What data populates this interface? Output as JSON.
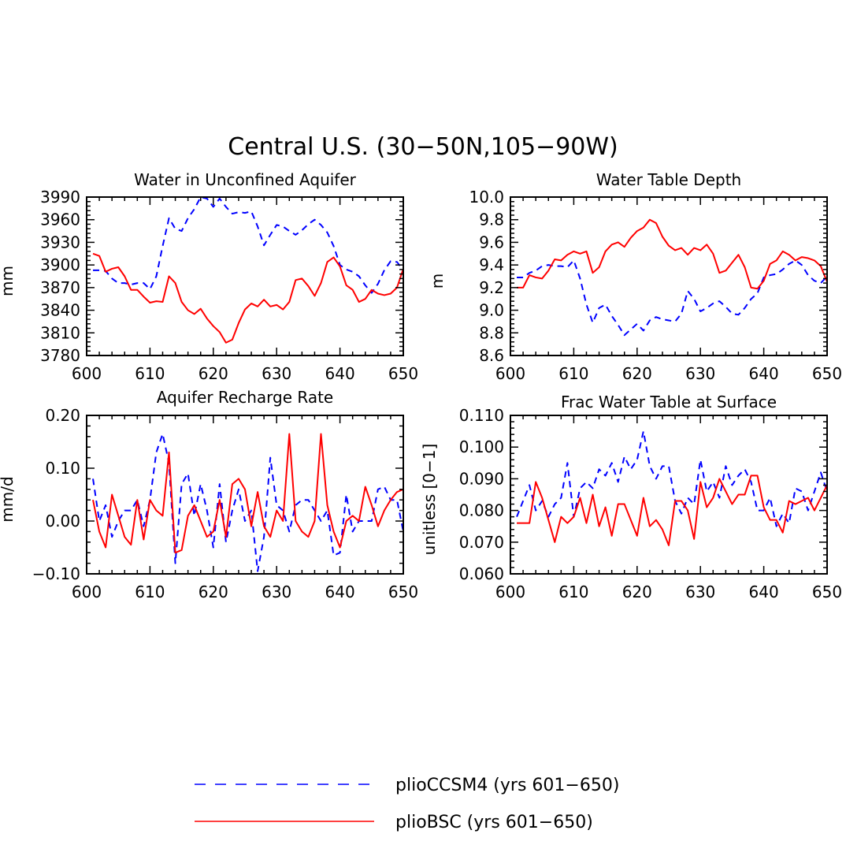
{
  "chart_data": {
    "type": "line",
    "title": "Central U.S. (30−50N,105−90W)",
    "series_names": [
      "plioCCSM4 (yrs 601−650)",
      "plioBSC (yrs 601−650)"
    ],
    "series_colors": [
      "#0000ff",
      "#ff0000"
    ],
    "legend_position": "bottom-center",
    "x": [
      601,
      602,
      603,
      604,
      605,
      606,
      607,
      608,
      609,
      610,
      611,
      612,
      613,
      614,
      615,
      616,
      617,
      618,
      619,
      620,
      621,
      622,
      623,
      624,
      625,
      626,
      627,
      628,
      629,
      630,
      631,
      632,
      633,
      634,
      635,
      636,
      637,
      638,
      639,
      640,
      641,
      642,
      643,
      644,
      645,
      646,
      647,
      648,
      649,
      650
    ],
    "panels": [
      {
        "title": "Water in Unconfined Aquifer",
        "ylabel": "mm",
        "xlim": [
          600,
          650
        ],
        "ylim": [
          3780,
          3990
        ],
        "xticks": [
          "600",
          "610",
          "620",
          "630",
          "640",
          "650"
        ],
        "yticks": [
          "3990",
          "3960",
          "3930",
          "3900",
          "3870",
          "3840",
          "3810",
          "3780"
        ],
        "series": [
          {
            "name": "plioCCSM4 (yrs 601−650)",
            "values": [
              3893,
              3893,
              3892,
              3882,
              3876,
              3876,
              3874,
              3876,
              3876,
              3868,
              3885,
              3925,
              3962,
              3948,
              3945,
              3962,
              3974,
              3990,
              3988,
              3977,
              3988,
              3977,
              3968,
              3970,
              3969,
              3971,
              3951,
              3926,
              3940,
              3953,
              3951,
              3945,
              3940,
              3946,
              3954,
              3960,
              3953,
              3943,
              3925,
              3900,
              3894,
              3891,
              3885,
              3873,
              3863,
              3875,
              3893,
              3905,
              3904,
              3893
            ]
          },
          {
            "name": "plioBSC (yrs 601−650)",
            "values": [
              3915,
              3912,
              3891,
              3895,
              3897,
              3885,
              3867,
              3867,
              3858,
              3850,
              3852,
              3851,
              3885,
              3876,
              3851,
              3840,
              3835,
              3842,
              3829,
              3819,
              3811,
              3797,
              3801,
              3823,
              3841,
              3849,
              3845,
              3854,
              3845,
              3847,
              3841,
              3851,
              3880,
              3882,
              3872,
              3859,
              3876,
              3904,
              3910,
              3898,
              3873,
              3867,
              3851,
              3855,
              3867,
              3862,
              3860,
              3862,
              3870,
              3895
            ]
          }
        ]
      },
      {
        "title": "Water Table Depth",
        "ylabel": "m",
        "xlim": [
          600,
          650
        ],
        "ylim": [
          8.6,
          10.0
        ],
        "xticks": [
          "600",
          "610",
          "620",
          "630",
          "640",
          "650"
        ],
        "yticks": [
          "10.0",
          "9.8",
          "9.6",
          "9.4",
          "9.2",
          "9.0",
          "8.8",
          "8.6"
        ],
        "series": [
          {
            "name": "plioCCSM4 (yrs 601−650)",
            "values": [
              9.29,
              9.29,
              9.33,
              9.35,
              9.39,
              9.4,
              9.39,
              9.39,
              9.38,
              9.44,
              9.28,
              9.05,
              8.89,
              9.02,
              9.05,
              8.95,
              8.87,
              8.78,
              8.83,
              8.88,
              8.82,
              8.91,
              8.94,
              8.92,
              8.91,
              8.9,
              8.97,
              9.17,
              9.1,
              8.99,
              9.02,
              9.06,
              9.08,
              9.03,
              8.97,
              8.96,
              9.02,
              9.1,
              9.15,
              9.29,
              9.31,
              9.32,
              9.36,
              9.41,
              9.44,
              9.4,
              9.31,
              9.26,
              9.24,
              9.3
            ]
          },
          {
            "name": "plioBSC (yrs 601−650)",
            "values": [
              9.2,
              9.2,
              9.31,
              9.29,
              9.28,
              9.35,
              9.45,
              9.44,
              9.49,
              9.52,
              9.5,
              9.52,
              9.33,
              9.38,
              9.52,
              9.58,
              9.6,
              9.56,
              9.64,
              9.7,
              9.73,
              9.8,
              9.77,
              9.65,
              9.57,
              9.53,
              9.55,
              9.49,
              9.55,
              9.53,
              9.58,
              9.5,
              9.33,
              9.35,
              9.42,
              9.49,
              9.38,
              9.2,
              9.19,
              9.26,
              9.41,
              9.44,
              9.52,
              9.49,
              9.44,
              9.47,
              9.46,
              9.44,
              9.39,
              9.25
            ]
          }
        ]
      },
      {
        "title": "Aquifer Recharge Rate",
        "ylabel": "mm/d",
        "xlim": [
          600,
          650
        ],
        "ylim": [
          -0.1,
          0.2
        ],
        "xticks": [
          "600",
          "610",
          "620",
          "630",
          "640",
          "650"
        ],
        "yticks": [
          "0.20",
          "0.10",
          "0.00",
          "−0.10"
        ],
        "series": [
          {
            "name": "plioCCSM4 (yrs 601−650)",
            "values": [
              0.08,
              0.0,
              0.03,
              -0.03,
              0.0,
              0.02,
              0.02,
              0.04,
              -0.01,
              0.04,
              0.13,
              0.165,
              0.11,
              -0.08,
              0.07,
              0.09,
              0.01,
              0.07,
              0.02,
              -0.05,
              0.07,
              -0.04,
              0.02,
              0.06,
              0.0,
              0.02,
              -0.095,
              -0.03,
              0.12,
              0.03,
              0.02,
              -0.02,
              0.03,
              0.04,
              0.04,
              0.02,
              0.0,
              0.02,
              -0.065,
              -0.06,
              0.05,
              -0.02,
              0.0,
              0.0,
              0.0,
              0.06,
              0.065,
              0.04,
              0.04,
              -0.02
            ]
          },
          {
            "name": "plioBSC (yrs 601−650)",
            "values": [
              0.04,
              -0.02,
              -0.05,
              0.05,
              0.01,
              -0.03,
              -0.045,
              0.04,
              -0.035,
              0.04,
              0.02,
              0.01,
              0.13,
              -0.06,
              -0.055,
              0.01,
              0.03,
              0.0,
              -0.03,
              -0.02,
              0.04,
              -0.03,
              0.07,
              0.08,
              0.06,
              -0.01,
              0.055,
              -0.01,
              -0.03,
              0.02,
              0.0,
              0.165,
              0.0,
              -0.02,
              -0.03,
              0.0,
              0.165,
              0.03,
              -0.02,
              -0.05,
              0.0,
              0.01,
              0.0,
              0.065,
              0.03,
              -0.01,
              0.02,
              0.04,
              0.055,
              0.06
            ]
          }
        ]
      },
      {
        "title": "Frac Water Table at Surface",
        "ylabel": "unitless [0−1]",
        "xlim": [
          600,
          650
        ],
        "ylim": [
          0.06,
          0.11
        ],
        "xticks": [
          "600",
          "610",
          "620",
          "630",
          "640",
          "650"
        ],
        "yticks": [
          "0.110",
          "0.100",
          "0.090",
          "0.080",
          "0.070",
          "0.060"
        ],
        "series": [
          {
            "name": "plioCCSM4 (yrs 601−650)",
            "values": [
              0.078,
              0.083,
              0.088,
              0.08,
              0.083,
              0.078,
              0.082,
              0.084,
              0.095,
              0.078,
              0.087,
              0.089,
              0.087,
              0.093,
              0.091,
              0.095,
              0.089,
              0.097,
              0.093,
              0.096,
              0.105,
              0.094,
              0.09,
              0.094,
              0.094,
              0.083,
              0.079,
              0.084,
              0.082,
              0.096,
              0.086,
              0.089,
              0.084,
              0.094,
              0.088,
              0.091,
              0.093,
              0.089,
              0.08,
              0.08,
              0.084,
              0.075,
              0.079,
              0.076,
              0.087,
              0.086,
              0.08,
              0.086,
              0.092,
              0.086
            ]
          },
          {
            "name": "plioBSC (yrs 601−650)",
            "values": [
              0.076,
              0.076,
              0.076,
              0.089,
              0.084,
              0.077,
              0.07,
              0.078,
              0.076,
              0.078,
              0.084,
              0.076,
              0.085,
              0.075,
              0.081,
              0.072,
              0.082,
              0.082,
              0.077,
              0.072,
              0.084,
              0.075,
              0.077,
              0.074,
              0.069,
              0.083,
              0.083,
              0.08,
              0.071,
              0.089,
              0.081,
              0.084,
              0.09,
              0.086,
              0.082,
              0.085,
              0.085,
              0.091,
              0.091,
              0.081,
              0.077,
              0.077,
              0.073,
              0.083,
              0.082,
              0.083,
              0.084,
              0.08,
              0.084,
              0.088
            ]
          }
        ]
      }
    ]
  }
}
